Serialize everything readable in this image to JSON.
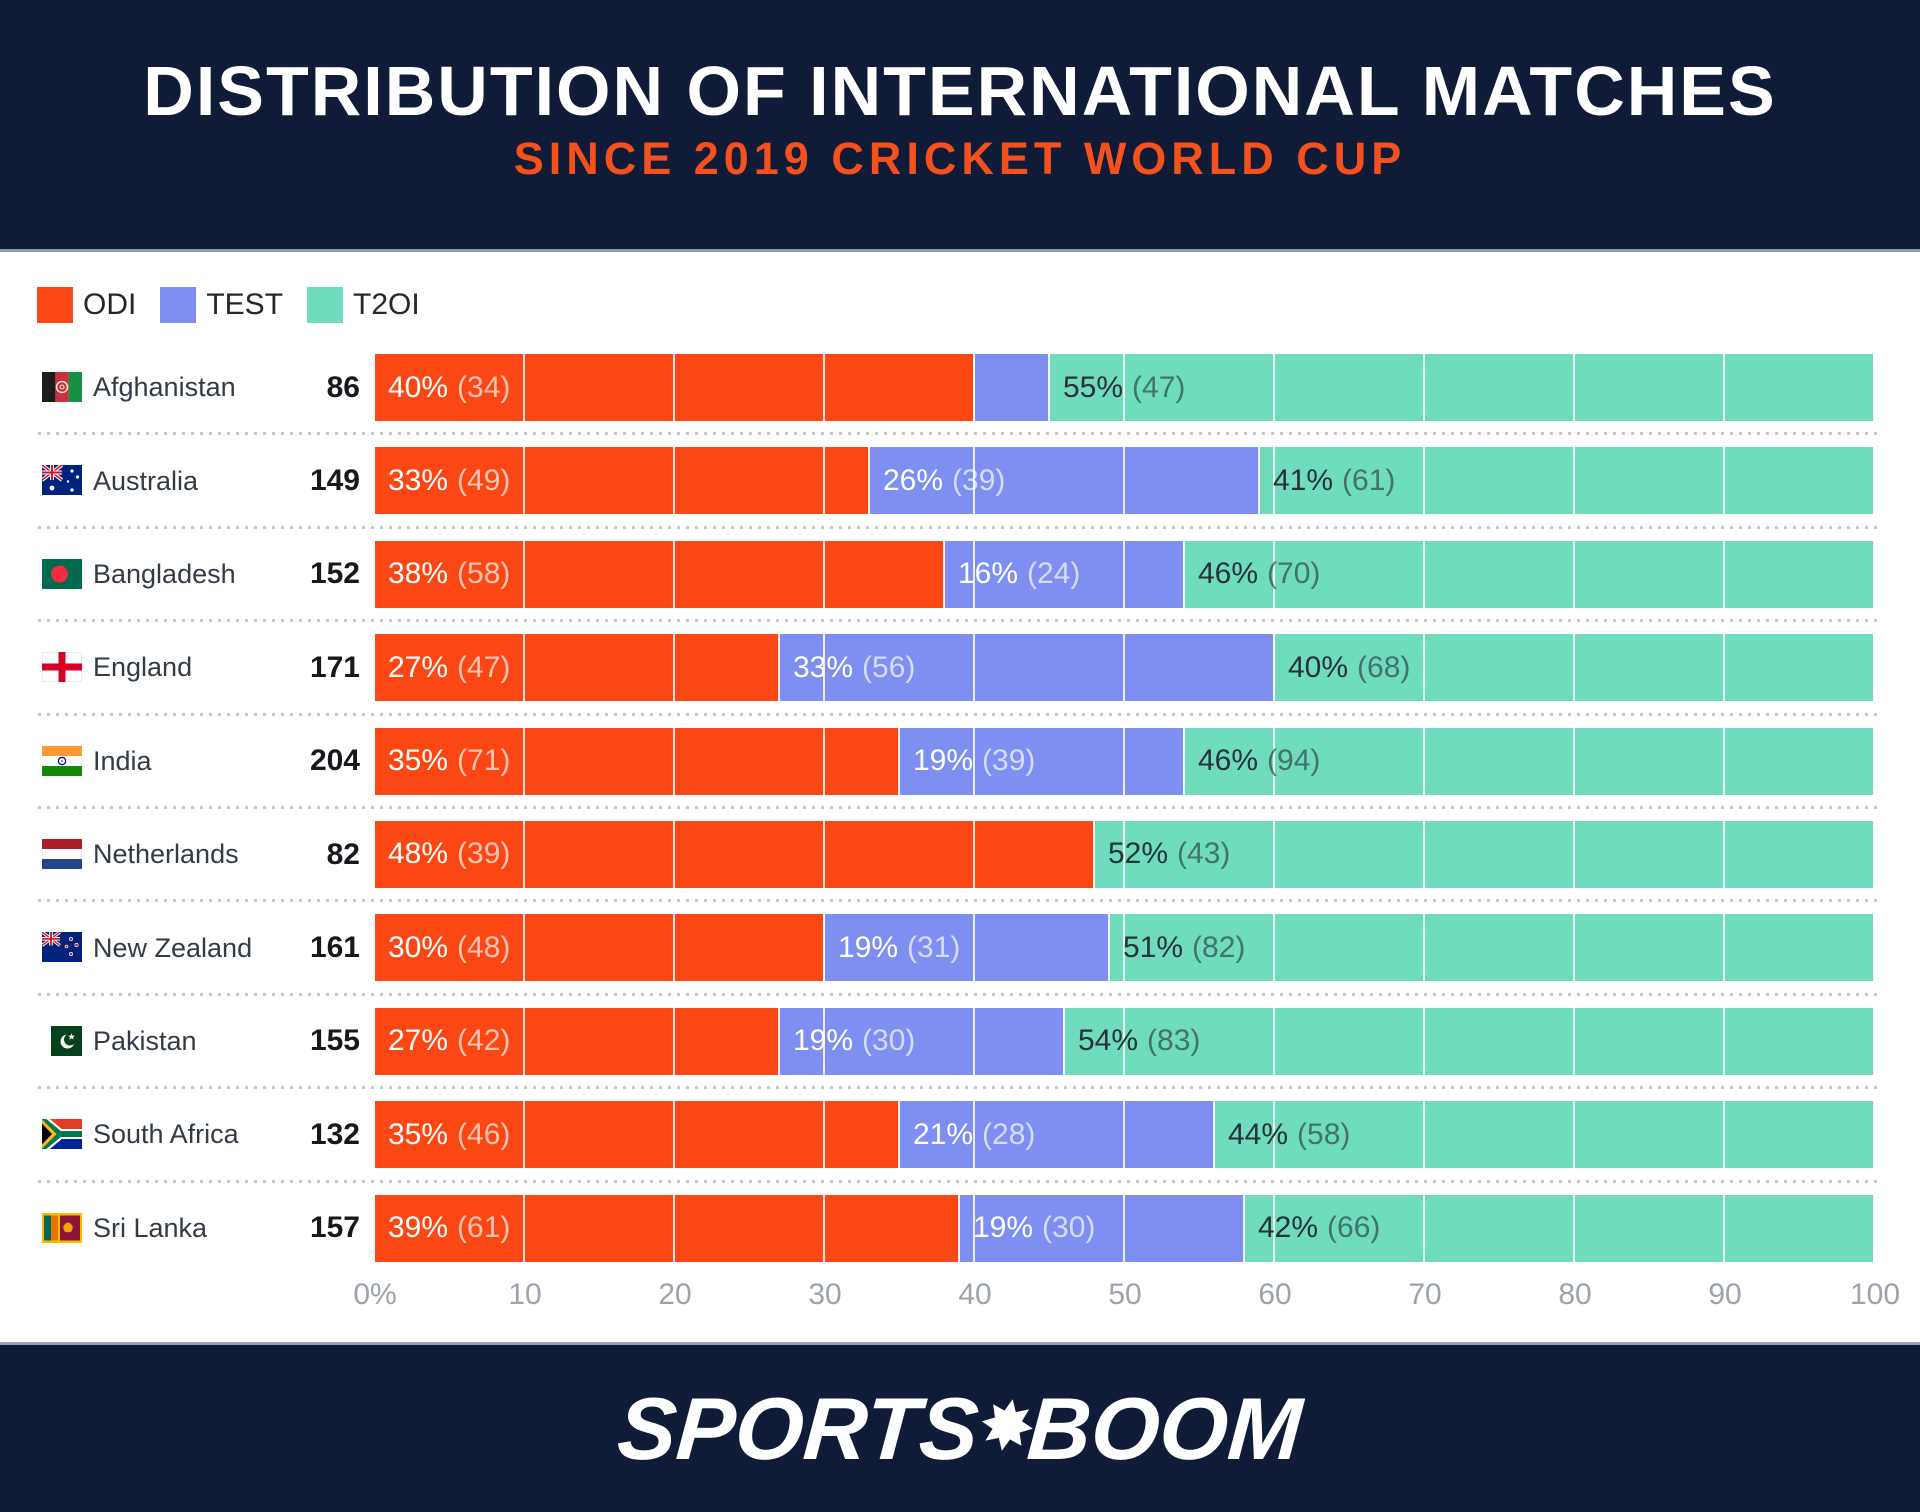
{
  "header": {
    "title": "DISTRIBUTION OF INTERNATIONAL MATCHES",
    "subtitle": "SINCE 2019 CRICKET WORLD CUP"
  },
  "legend": {
    "items": [
      {
        "label": "ODI",
        "color": "#FB4713"
      },
      {
        "label": "TEST",
        "color": "#7E8FF1"
      },
      {
        "label": "T2OI",
        "color": "#6FDCBD"
      }
    ]
  },
  "chart_data": {
    "type": "bar",
    "stacked": true,
    "orientation": "horizontal",
    "title": "DISTRIBUTION OF INTERNATIONAL MATCHES",
    "subtitle": "SINCE 2019 CRICKET WORLD CUP",
    "series_names": [
      "ODI",
      "TEST",
      "T2OI"
    ],
    "x_axis": {
      "min": 0,
      "max": 100,
      "grid": true,
      "tick_labels": [
        "0%",
        "10",
        "20",
        "30",
        "40",
        "50",
        "60",
        "70",
        "80",
        "90",
        "100"
      ]
    },
    "rows": [
      {
        "country": "Afghanistan",
        "flag": "afghanistan",
        "total": "86",
        "segments": [
          {
            "series": "ODI",
            "pct": 40,
            "pct_label": "40%",
            "count_label": "(34)"
          },
          {
            "series": "TEST",
            "pct": 5,
            "pct_label": "",
            "count_label": ""
          },
          {
            "series": "T2OI",
            "pct": 55,
            "pct_label": "55%",
            "count_label": "(47)"
          }
        ]
      },
      {
        "country": "Australia",
        "flag": "australia",
        "total": "149",
        "segments": [
          {
            "series": "ODI",
            "pct": 33,
            "pct_label": "33%",
            "count_label": "(49)"
          },
          {
            "series": "TEST",
            "pct": 26,
            "pct_label": "26%",
            "count_label": "(39)"
          },
          {
            "series": "T2OI",
            "pct": 41,
            "pct_label": "41%",
            "count_label": "(61)"
          }
        ]
      },
      {
        "country": "Bangladesh",
        "flag": "bangladesh",
        "total": "152",
        "segments": [
          {
            "series": "ODI",
            "pct": 38,
            "pct_label": "38%",
            "count_label": "(58)"
          },
          {
            "series": "TEST",
            "pct": 16,
            "pct_label": "16%",
            "count_label": "(24)"
          },
          {
            "series": "T2OI",
            "pct": 46,
            "pct_label": "46%",
            "count_label": "(70)"
          }
        ]
      },
      {
        "country": "England",
        "flag": "england",
        "total": "171",
        "segments": [
          {
            "series": "ODI",
            "pct": 27,
            "pct_label": "27%",
            "count_label": "(47)"
          },
          {
            "series": "TEST",
            "pct": 33,
            "pct_label": "33%",
            "count_label": "(56)"
          },
          {
            "series": "T2OI",
            "pct": 40,
            "pct_label": "40%",
            "count_label": "(68)"
          }
        ]
      },
      {
        "country": "India",
        "flag": "india",
        "total": "204",
        "segments": [
          {
            "series": "ODI",
            "pct": 35,
            "pct_label": "35%",
            "count_label": "(71)"
          },
          {
            "series": "TEST",
            "pct": 19,
            "pct_label": "19%",
            "count_label": "(39)"
          },
          {
            "series": "T2OI",
            "pct": 46,
            "pct_label": "46%",
            "count_label": "(94)"
          }
        ]
      },
      {
        "country": "Netherlands",
        "flag": "netherlands",
        "total": "82",
        "segments": [
          {
            "series": "ODI",
            "pct": 48,
            "pct_label": "48%",
            "count_label": "(39)"
          },
          {
            "series": "T2OI",
            "pct": 52,
            "pct_label": "52%",
            "count_label": "(43)"
          }
        ]
      },
      {
        "country": "New Zealand",
        "flag": "new-zealand",
        "total": "161",
        "segments": [
          {
            "series": "ODI",
            "pct": 30,
            "pct_label": "30%",
            "count_label": "(48)"
          },
          {
            "series": "TEST",
            "pct": 19,
            "pct_label": "19%",
            "count_label": "(31)"
          },
          {
            "series": "T2OI",
            "pct": 51,
            "pct_label": "51%",
            "count_label": "(82)"
          }
        ]
      },
      {
        "country": "Pakistan",
        "flag": "pakistan",
        "total": "155",
        "segments": [
          {
            "series": "ODI",
            "pct": 27,
            "pct_label": "27%",
            "count_label": "(42)"
          },
          {
            "series": "TEST",
            "pct": 19,
            "pct_label": "19%",
            "count_label": "(30)"
          },
          {
            "series": "T2OI",
            "pct": 54,
            "pct_label": "54%",
            "count_label": "(83)"
          }
        ]
      },
      {
        "country": "South Africa",
        "flag": "south-africa",
        "total": "132",
        "segments": [
          {
            "series": "ODI",
            "pct": 35,
            "pct_label": "35%",
            "count_label": "(46)"
          },
          {
            "series": "TEST",
            "pct": 21,
            "pct_label": "21%",
            "count_label": "(28)"
          },
          {
            "series": "T2OI",
            "pct": 44,
            "pct_label": "44%",
            "count_label": "(58)"
          }
        ]
      },
      {
        "country": "Sri Lanka",
        "flag": "sri-lanka",
        "total": "157",
        "segments": [
          {
            "series": "ODI",
            "pct": 39,
            "pct_label": "39%",
            "count_label": "(61)"
          },
          {
            "series": "TEST",
            "pct": 19,
            "pct_label": "19%",
            "count_label": "(30)"
          },
          {
            "series": "T2OI",
            "pct": 42,
            "pct_label": "42%",
            "count_label": "(66)"
          }
        ]
      }
    ]
  },
  "footer": {
    "brand_left": "SPORTS",
    "burst": "✸",
    "brand_right": "BOOM"
  }
}
